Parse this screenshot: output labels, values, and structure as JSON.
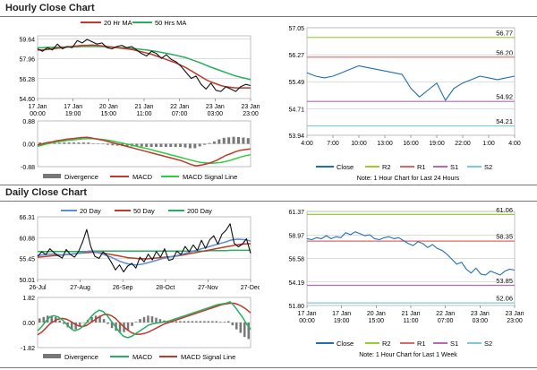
{
  "titles": {
    "hourly": "Hourly Close Chart",
    "daily": "Daily Close Chart"
  },
  "colors": {
    "close": "#1f6fb5",
    "ma20": "#c0392b",
    "ma50": "#27ae60",
    "day20": "#5b8ed6",
    "signal": "#2ecc40",
    "r2": "#9acd32",
    "r1": "#e06666",
    "s1": "#b36ab3",
    "s2": "#7fc8d8",
    "hist": "#777777"
  },
  "chart_data": [
    {
      "id": "hourly_price",
      "type": "line",
      "title": "Hourly Close Chart",
      "legend": [
        "20 Hr MA",
        "50 Hrs MA"
      ],
      "legend_position": "top",
      "ylim": [
        54.6,
        59.9
      ],
      "yticks": [
        "59.64",
        "57.96",
        "56.28",
        "54.60"
      ],
      "ytick_values": [
        59.64,
        57.96,
        56.28,
        54.6
      ],
      "xtick_labels": [
        [
          "17 Jan",
          "00:00"
        ],
        [
          "17 Jan",
          "19:00"
        ],
        [
          "20 Jan",
          "15:00"
        ],
        [
          "21 Jan",
          "11:00"
        ],
        [
          "22 Jan",
          "07:00"
        ],
        [
          "23 Jan",
          "03:00"
        ],
        [
          "23 Jan",
          "23:00"
        ]
      ],
      "series": [
        {
          "name": "Close",
          "values": [
            58.8,
            58.6,
            58.9,
            58.7,
            59.2,
            58.8,
            59.0,
            58.9,
            59.5,
            59.3,
            59.6,
            59.4,
            59.2,
            59.3,
            58.9,
            58.8,
            59.0,
            59.1,
            58.9,
            59.0,
            58.7,
            58.4,
            58.2,
            58.6,
            58.4,
            58.0,
            58.3,
            57.9,
            57.7,
            57.3,
            56.8,
            56.3,
            56.5,
            55.8,
            55.4,
            55.9,
            55.3,
            55.2,
            55.6,
            55.4,
            55.2,
            55.6,
            55.8,
            55.7
          ]
        },
        {
          "name": "20 Hr MA",
          "values": [
            58.7,
            58.7,
            58.75,
            58.8,
            58.85,
            58.9,
            58.95,
            59.0,
            59.05,
            59.1,
            59.1,
            59.12,
            59.1,
            59.05,
            59.0,
            58.95,
            58.9,
            58.85,
            58.8,
            58.75,
            58.65,
            58.55,
            58.45,
            58.35,
            58.2,
            58.05,
            57.9,
            57.75,
            57.6,
            57.4,
            57.2,
            56.95,
            56.7,
            56.45,
            56.2,
            56.0,
            55.85,
            55.7,
            55.6,
            55.55,
            55.5,
            55.5,
            55.5,
            55.5
          ]
        },
        {
          "name": "50 Hrs MA",
          "values": [
            58.9,
            58.9,
            58.92,
            58.93,
            58.94,
            58.95,
            58.96,
            58.97,
            58.98,
            59.0,
            59.0,
            59.0,
            59.0,
            58.99,
            58.97,
            58.95,
            58.92,
            58.9,
            58.87,
            58.84,
            58.8,
            58.75,
            58.7,
            58.64,
            58.58,
            58.5,
            58.42,
            58.34,
            58.25,
            58.15,
            58.05,
            57.9,
            57.75,
            57.6,
            57.42,
            57.25,
            57.1,
            56.95,
            56.8,
            56.65,
            56.5,
            56.4,
            56.3,
            56.2
          ]
        }
      ]
    },
    {
      "id": "hourly_macd",
      "type": "line",
      "legend": [
        "Divergence",
        "MACD",
        "MACD Signal Line"
      ],
      "ylim": [
        -0.88,
        0.88
      ],
      "yticks": [
        "0.88",
        "0.00",
        "-0.88"
      ],
      "ytick_values": [
        0.88,
        0.0,
        -0.88
      ],
      "series": [
        {
          "name": "MACD",
          "values": [
            -0.05,
            0.0,
            0.05,
            0.08,
            0.12,
            0.15,
            0.18,
            0.2,
            0.22,
            0.24,
            0.25,
            0.22,
            0.18,
            0.15,
            0.1,
            0.05,
            0.0,
            -0.05,
            -0.1,
            -0.15,
            -0.2,
            -0.25,
            -0.3,
            -0.35,
            -0.4,
            -0.45,
            -0.5,
            -0.55,
            -0.6,
            -0.65,
            -0.72,
            -0.8,
            -0.85,
            -0.82,
            -0.78,
            -0.72,
            -0.65,
            -0.55,
            -0.45,
            -0.38,
            -0.3,
            -0.25,
            -0.22,
            -0.2
          ]
        },
        {
          "name": "MACD Signal Line",
          "values": [
            -0.1,
            -0.05,
            0.0,
            0.04,
            0.08,
            0.1,
            0.13,
            0.15,
            0.17,
            0.19,
            0.2,
            0.2,
            0.19,
            0.17,
            0.14,
            0.11,
            0.07,
            0.03,
            -0.01,
            -0.05,
            -0.1,
            -0.14,
            -0.18,
            -0.23,
            -0.28,
            -0.33,
            -0.38,
            -0.43,
            -0.48,
            -0.53,
            -0.58,
            -0.63,
            -0.68,
            -0.72,
            -0.74,
            -0.75,
            -0.74,
            -0.72,
            -0.68,
            -0.63,
            -0.57,
            -0.51,
            -0.46,
            -0.42
          ]
        }
      ]
    },
    {
      "id": "hourly_24h",
      "type": "line",
      "note": "Note: 1 Hour Chart for Last 24 Hours",
      "legend": [
        "Close",
        "R2",
        "R1",
        "S1",
        "S2"
      ],
      "ylim": [
        53.94,
        57.05
      ],
      "yticks": [
        "57.05",
        "56.27",
        "55.49",
        "54.71",
        "53.94"
      ],
      "ytick_values": [
        57.05,
        56.27,
        55.49,
        54.71,
        53.94
      ],
      "xtick_labels": [
        "4:00",
        "7:00",
        "10:00",
        "13:00",
        "16:00",
        "19:00",
        "22:00",
        "1:00",
        "4:00"
      ],
      "levels": {
        "R2": 56.77,
        "R1": 56.2,
        "S1": 54.92,
        "S2": 54.21
      },
      "level_labels": {
        "R2": "56.77",
        "R1": "56.20",
        "S1": "54.92",
        "S2": "54.21"
      },
      "series": [
        {
          "name": "Close",
          "values": [
            55.75,
            55.65,
            55.6,
            55.65,
            55.75,
            55.85,
            55.95,
            55.9,
            55.85,
            55.8,
            55.75,
            55.7,
            55.3,
            55.05,
            55.25,
            55.45,
            54.95,
            55.3,
            55.45,
            55.55,
            55.65,
            55.6,
            55.55,
            55.6,
            55.65
          ]
        }
      ]
    },
    {
      "id": "daily_price",
      "type": "line",
      "title": "Daily Close Chart",
      "legend": [
        "20 Day",
        "50 Day",
        "200 Day"
      ],
      "legend_position": "top",
      "ylim": [
        50.01,
        66.31
      ],
      "yticks": [
        "66.31",
        "60.88",
        "55.45",
        "50.01"
      ],
      "ytick_values": [
        66.31,
        60.88,
        55.45,
        50.01
      ],
      "xtick_labels": [
        "26-Jul",
        "27-Aug",
        "26-Sep",
        "28-Oct",
        "27-Nov",
        "27-Dec"
      ],
      "series": [
        {
          "name": "Close",
          "values": [
            56.0,
            57.2,
            56.5,
            58.0,
            57.0,
            56.2,
            55.6,
            57.8,
            56.5,
            55.8,
            57.3,
            59.8,
            63.0,
            58.5,
            56.0,
            55.5,
            57.2,
            56.2,
            54.5,
            52.5,
            53.8,
            52.0,
            53.5,
            54.2,
            53.0,
            55.8,
            54.6,
            56.6,
            55.1,
            57.3,
            55.8,
            58.0,
            55.0,
            55.3,
            57.4,
            56.5,
            58.6,
            57.2,
            59.0,
            57.6,
            60.2,
            58.1,
            60.3,
            61.4,
            59.2,
            61.8,
            62.8,
            64.5,
            59.4,
            58.5,
            59.2,
            60.6,
            56.8
          ]
        },
        {
          "name": "20 Day",
          "values": [
            56.2,
            56.4,
            56.5,
            56.6,
            56.6,
            56.5,
            56.4,
            56.5,
            56.6,
            56.7,
            56.8,
            57.0,
            57.3,
            57.4,
            57.2,
            56.9,
            56.6,
            56.2,
            55.8,
            55.3,
            54.8,
            54.4,
            54.1,
            53.9,
            53.8,
            53.9,
            54.1,
            54.4,
            54.7,
            55.0,
            55.3,
            55.6,
            55.8,
            56.0,
            56.2,
            56.5,
            56.8,
            57.1,
            57.4,
            57.7,
            58.0,
            58.3,
            58.6,
            58.9,
            59.2,
            59.5,
            59.8,
            60.2,
            60.4,
            60.5,
            60.4,
            60.3,
            60.0
          ]
        },
        {
          "name": "50 Day",
          "values": [
            55.8,
            55.9,
            56.0,
            56.1,
            56.2,
            56.3,
            56.4,
            56.5,
            56.6,
            56.7,
            56.8,
            56.9,
            57.0,
            57.1,
            57.1,
            57.0,
            56.9,
            56.7,
            56.5,
            56.3,
            56.1,
            55.9,
            55.7,
            55.6,
            55.5,
            55.4,
            55.4,
            55.4,
            55.5,
            55.6,
            55.7,
            55.8,
            55.9,
            56.0,
            56.1,
            56.3,
            56.5,
            56.7,
            56.9,
            57.1,
            57.3,
            57.5,
            57.7,
            57.9,
            58.1,
            58.3,
            58.5,
            58.7,
            58.9,
            59.1,
            59.2,
            59.3,
            59.3
          ]
        },
        {
          "name": "200 Day",
          "values": [
            57.3,
            57.3,
            57.3,
            57.3,
            57.3,
            57.3,
            57.3,
            57.3,
            57.3,
            57.3,
            57.3,
            57.3,
            57.3,
            57.4,
            57.4,
            57.4,
            57.4,
            57.4,
            57.4,
            57.4,
            57.4,
            57.4,
            57.4,
            57.4,
            57.4,
            57.4,
            57.4,
            57.4,
            57.4,
            57.4,
            57.4,
            57.4,
            57.4,
            57.4,
            57.4,
            57.4,
            57.4,
            57.4,
            57.4,
            57.4,
            57.4,
            57.4,
            57.5,
            57.5,
            57.5,
            57.5,
            57.5,
            57.6,
            57.6,
            57.6,
            57.6,
            57.6,
            57.6
          ]
        }
      ]
    },
    {
      "id": "daily_macd",
      "type": "line",
      "legend": [
        "Divergence",
        "MACD",
        "MACD Signal Line"
      ],
      "ylim": [
        -1.82,
        1.82
      ],
      "yticks": [
        "1.82",
        "0.00",
        "-1.82"
      ],
      "ytick_values": [
        1.82,
        0.0,
        -1.82
      ],
      "series": [
        {
          "name": "MACD",
          "values": [
            -0.6,
            -0.3,
            0.1,
            0.4,
            0.5,
            0.4,
            0.2,
            -0.1,
            -0.4,
            -0.6,
            -0.5,
            -0.3,
            0.0,
            0.4,
            0.7,
            0.9,
            0.8,
            0.5,
            0.1,
            -0.3,
            -0.7,
            -1.0,
            -1.1,
            -1.0,
            -0.8,
            -0.6,
            -0.4,
            -0.2,
            -0.1,
            -0.05,
            0.0,
            0.05,
            0.1,
            0.2,
            0.3,
            0.4,
            0.5,
            0.6,
            0.7,
            0.8,
            0.9,
            1.0,
            1.1,
            1.2,
            1.3,
            1.35,
            1.4,
            1.5,
            1.2,
            0.8,
            0.4,
            -0.1,
            -0.5
          ]
        },
        {
          "name": "MACD Signal Line",
          "values": [
            -0.9,
            -0.7,
            -0.4,
            -0.1,
            0.1,
            0.25,
            0.3,
            0.25,
            0.1,
            -0.1,
            -0.25,
            -0.3,
            -0.2,
            0.0,
            0.2,
            0.4,
            0.55,
            0.6,
            0.5,
            0.3,
            0.0,
            -0.3,
            -0.55,
            -0.75,
            -0.85,
            -0.85,
            -0.8,
            -0.7,
            -0.55,
            -0.4,
            -0.25,
            -0.1,
            0.0,
            0.1,
            0.2,
            0.3,
            0.4,
            0.5,
            0.6,
            0.7,
            0.8,
            0.9,
            1.0,
            1.1,
            1.2,
            1.3,
            1.35,
            1.4,
            1.4,
            1.3,
            1.15,
            0.95,
            0.7
          ]
        }
      ]
    },
    {
      "id": "daily_week",
      "type": "line",
      "note": "Note: 1 Hour Chart for Last 1 Week",
      "legend": [
        "Close",
        "R2",
        "R1",
        "S1",
        "S2"
      ],
      "ylim": [
        51.8,
        61.37
      ],
      "yticks": [
        "61.37",
        "58.97",
        "56.58",
        "54.19",
        "51.80"
      ],
      "ytick_values": [
        61.37,
        58.97,
        56.58,
        54.19,
        51.8
      ],
      "xtick_labels": [
        [
          "17 Jan",
          "00:00"
        ],
        [
          "17 Jan",
          "19:00"
        ],
        [
          "20 Jan",
          "15:00"
        ],
        [
          "21 Jan",
          "11:00"
        ],
        [
          "22 Jan",
          "07:00"
        ],
        [
          "23 Jan",
          "03:00"
        ],
        [
          "23 Jan",
          "23:00"
        ]
      ],
      "levels": {
        "R2": 61.06,
        "R1": 58.35,
        "S1": 53.85,
        "S2": 52.06
      },
      "level_labels": {
        "R2": "61.06",
        "R1": "58.35",
        "S1": "53.85",
        "S2": "52.06"
      },
      "series": [
        {
          "name": "Close",
          "values": [
            58.6,
            58.5,
            58.7,
            58.6,
            58.9,
            58.6,
            58.8,
            58.7,
            59.2,
            59.0,
            59.3,
            59.1,
            58.9,
            59.0,
            58.6,
            58.5,
            58.7,
            58.8,
            58.6,
            58.7,
            58.4,
            58.1,
            57.9,
            58.3,
            58.1,
            57.7,
            58.0,
            57.6,
            57.4,
            57.0,
            56.5,
            56.0,
            56.2,
            55.5,
            55.1,
            55.6,
            55.0,
            54.9,
            55.3,
            55.1,
            54.9,
            55.3,
            55.5,
            55.4
          ]
        }
      ]
    }
  ]
}
